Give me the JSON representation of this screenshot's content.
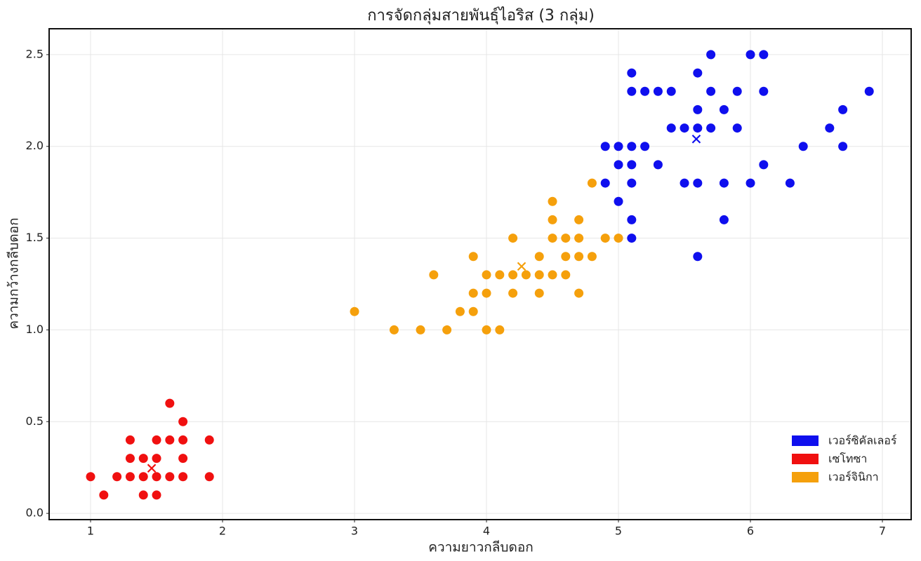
{
  "chart_data": {
    "type": "scatter",
    "title": "การจัดกลุ่มสายพันธุ์ไอริส (3 กลุ่ม)",
    "x_label": "ความยาวกลีบดอก",
    "y_label": "ความกว้างกลีบดอก",
    "xlim": [
      0.686,
      7.218
    ],
    "ylim": [
      -0.034,
      2.641
    ],
    "xticks": [
      1,
      2,
      3,
      4,
      5,
      6,
      7
    ],
    "yticks": [
      {
        "value": 0,
        "label": "0.0"
      },
      0.5,
      {
        "value": 1,
        "label": "1.0"
      },
      1.5,
      {
        "value": 2,
        "label": "2.0"
      },
      2.5
    ],
    "grid": true,
    "legend": "lower right",
    "series": [
      {
        "name": "เวอร์ซิคัลเลอร์",
        "color": "#0f0fee",
        "x": [
          4.9,
          4.9,
          5.0,
          5.0,
          5.0,
          5.1,
          5.1,
          5.1,
          5.1,
          5.1,
          5.1,
          5.1,
          5.2,
          5.2,
          5.3,
          5.3,
          5.4,
          5.4,
          5.5,
          5.5,
          5.6,
          5.6,
          5.6,
          5.6,
          5.6,
          5.7,
          5.7,
          5.7,
          5.8,
          5.8,
          5.8,
          5.9,
          5.9,
          6.0,
          6.0,
          6.1,
          6.1,
          6.1,
          6.3,
          6.4,
          6.6,
          6.7,
          6.7,
          6.9
        ],
        "y": [
          1.8,
          2.0,
          1.7,
          1.9,
          2.0,
          1.5,
          1.6,
          1.8,
          1.9,
          2.0,
          2.3,
          2.4,
          2.0,
          2.3,
          1.9,
          2.3,
          2.1,
          2.3,
          1.8,
          2.1,
          1.4,
          1.8,
          2.1,
          2.2,
          2.4,
          2.1,
          2.3,
          2.5,
          1.6,
          1.8,
          2.2,
          2.1,
          2.3,
          1.8,
          2.5,
          1.9,
          2.3,
          2.5,
          1.8,
          2.0,
          2.1,
          2.0,
          2.2,
          2.3
        ],
        "centroid_x": 5.59,
        "centroid_y": 2.04
      },
      {
        "name": "เซโทซา",
        "color": "#f01010",
        "x": [
          1.0,
          1.1,
          1.2,
          1.3,
          1.3,
          1.3,
          1.4,
          1.4,
          1.4,
          1.5,
          1.5,
          1.5,
          1.5,
          1.6,
          1.6,
          1.6,
          1.7,
          1.7,
          1.7,
          1.7,
          1.9,
          1.9
        ],
        "y": [
          0.2,
          0.1,
          0.2,
          0.2,
          0.3,
          0.4,
          0.1,
          0.2,
          0.3,
          0.1,
          0.2,
          0.3,
          0.4,
          0.2,
          0.4,
          0.6,
          0.2,
          0.3,
          0.4,
          0.5,
          0.2,
          0.4
        ],
        "centroid_x": 1.463,
        "centroid_y": 0.246
      },
      {
        "name": "เวอร์จินิกา",
        "color": "#f5a00c",
        "x": [
          3.0,
          3.3,
          3.5,
          3.6,
          3.7,
          3.8,
          3.9,
          3.9,
          3.9,
          4.0,
          4.0,
          4.0,
          4.1,
          4.1,
          4.2,
          4.2,
          4.2,
          4.3,
          4.4,
          4.4,
          4.4,
          4.5,
          4.5,
          4.5,
          4.5,
          4.6,
          4.6,
          4.6,
          4.7,
          4.7,
          4.7,
          4.7,
          4.8,
          4.8,
          4.9,
          5.0
        ],
        "y": [
          1.1,
          1.0,
          1.0,
          1.3,
          1.0,
          1.1,
          1.1,
          1.2,
          1.4,
          1.0,
          1.2,
          1.3,
          1.0,
          1.3,
          1.2,
          1.3,
          1.5,
          1.3,
          1.2,
          1.3,
          1.4,
          1.3,
          1.5,
          1.6,
          1.7,
          1.3,
          1.4,
          1.5,
          1.2,
          1.4,
          1.5,
          1.6,
          1.4,
          1.8,
          1.5,
          1.5
        ],
        "centroid_x": 4.266,
        "centroid_y": 1.346
      }
    ]
  }
}
